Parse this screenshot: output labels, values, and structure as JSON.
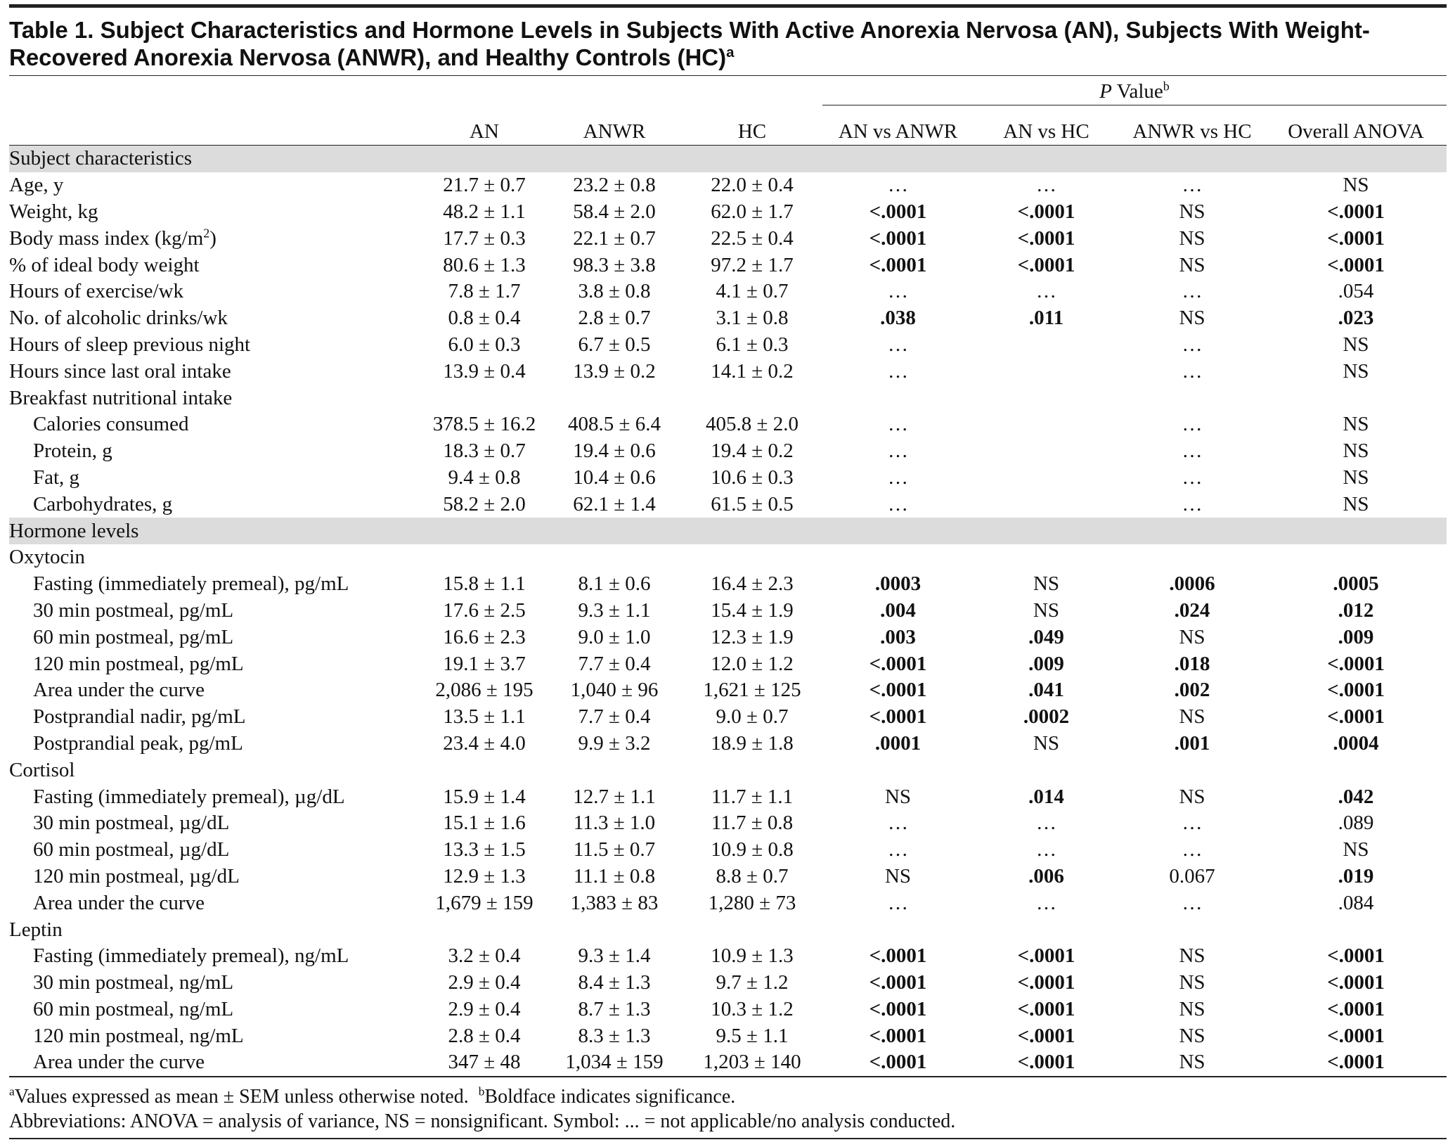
{
  "title": {
    "text": "Table 1. Subject Characteristics and Hormone Levels in Subjects With Active Anorexia Nervosa (AN), Subjects With Weight-Recovered Anorexia Nervosa (ANWR), and Healthy Controls (HC)",
    "sup": "a"
  },
  "p_header": {
    "italic": "P",
    "text": " Value",
    "sup": "b"
  },
  "columns": [
    "AN",
    "ANWR",
    "HC",
    "AN vs ANWR",
    "AN vs HC",
    "ANWR vs HC",
    "Overall ANOVA"
  ],
  "rows": [
    {
      "style": "section",
      "label": "Subject characteristics"
    },
    {
      "style": "item",
      "label": "Age, y",
      "cells": [
        "21.7 ± 0.7",
        "23.2 ± 0.8",
        "22.0 ± 0.4",
        "…",
        "…",
        "…",
        "NS"
      ],
      "bold": [
        false,
        false,
        false,
        false
      ]
    },
    {
      "style": "item",
      "label": "Weight, kg",
      "cells": [
        "48.2 ± 1.1",
        "58.4 ± 2.0",
        "62.0 ± 1.7",
        "<.0001",
        "<.0001",
        "NS",
        "<.0001"
      ],
      "bold": [
        true,
        true,
        false,
        true
      ]
    },
    {
      "style": "item",
      "label": "Body mass index (kg/m",
      "label_sup": "2",
      "label_end": ")",
      "cells": [
        "17.7 ± 0.3",
        "22.1 ± 0.7",
        "22.5 ± 0.4",
        "<.0001",
        "<.0001",
        "NS",
        "<.0001"
      ],
      "bold": [
        true,
        true,
        false,
        true
      ]
    },
    {
      "style": "item",
      "label": "% of ideal body weight",
      "cells": [
        "80.6 ± 1.3",
        "98.3 ± 3.8",
        "97.2 ± 1.7",
        "<.0001",
        "<.0001",
        "NS",
        "<.0001"
      ],
      "bold": [
        true,
        true,
        false,
        true
      ]
    },
    {
      "style": "item",
      "label": "Hours of exercise/wk",
      "cells": [
        "7.8 ± 1.7",
        "3.8 ± 0.8",
        "4.1 ± 0.7",
        "…",
        "…",
        "…",
        ".054"
      ],
      "bold": [
        false,
        false,
        false,
        false
      ]
    },
    {
      "style": "item",
      "label": "No. of alcoholic drinks/wk",
      "cells": [
        "0.8 ± 0.4",
        "2.8 ± 0.7",
        "3.1 ± 0.8",
        ".038",
        ".011",
        "NS",
        ".023"
      ],
      "bold": [
        true,
        true,
        false,
        true
      ]
    },
    {
      "style": "item",
      "label": "Hours of sleep previous night",
      "cells": [
        "6.0 ± 0.3",
        "6.7 ± 0.5",
        "6.1 ± 0.3",
        "…",
        null,
        "…",
        "NS"
      ],
      "bold": [
        false,
        false,
        false,
        false
      ]
    },
    {
      "style": "item",
      "label": "Hours since last oral intake",
      "cells": [
        "13.9 ± 0.4",
        "13.9 ± 0.2",
        "14.1 ± 0.2",
        "…",
        null,
        "…",
        "NS"
      ],
      "bold": [
        false,
        false,
        false,
        false
      ]
    },
    {
      "style": "group",
      "label": "Breakfast nutritional intake"
    },
    {
      "style": "sub",
      "label": "Calories consumed",
      "cells": [
        "378.5 ± 16.2",
        "408.5 ± 6.4",
        "405.8 ± 2.0",
        "…",
        null,
        "…",
        "NS"
      ],
      "bold": [
        false,
        false,
        false,
        false
      ]
    },
    {
      "style": "sub",
      "label": "Protein, g",
      "cells": [
        "18.3 ± 0.7",
        "19.4 ± 0.6",
        "19.4 ± 0.2",
        "…",
        null,
        "…",
        "NS"
      ],
      "bold": [
        false,
        false,
        false,
        false
      ]
    },
    {
      "style": "sub",
      "label": "Fat, g",
      "cells": [
        "9.4 ± 0.8",
        "10.4 ± 0.6",
        "10.6 ± 0.3",
        "…",
        null,
        "…",
        "NS"
      ],
      "bold": [
        false,
        false,
        false,
        false
      ]
    },
    {
      "style": "sub",
      "label": "Carbohydrates, g",
      "cells": [
        "58.2 ± 2.0",
        "62.1 ± 1.4",
        "61.5 ± 0.5",
        "…",
        null,
        "…",
        "NS"
      ],
      "bold": [
        false,
        false,
        false,
        false
      ]
    },
    {
      "style": "section",
      "label": "Hormone levels"
    },
    {
      "style": "group",
      "label": "Oxytocin"
    },
    {
      "style": "sub",
      "label": "Fasting (immediately premeal), pg/mL",
      "cells": [
        "15.8 ± 1.1",
        "8.1 ± 0.6",
        "16.4 ± 2.3",
        ".0003",
        "NS",
        ".0006",
        ".0005"
      ],
      "bold": [
        true,
        false,
        true,
        true
      ]
    },
    {
      "style": "sub",
      "label": "30 min postmeal, pg/mL",
      "cells": [
        "17.6 ± 2.5",
        "9.3 ± 1.1",
        "15.4 ± 1.9",
        ".004",
        "NS",
        ".024",
        ".012"
      ],
      "bold": [
        true,
        false,
        true,
        true
      ]
    },
    {
      "style": "sub",
      "label": "60 min postmeal, pg/mL",
      "cells": [
        "16.6 ± 2.3",
        "9.0 ± 1.0",
        "12.3 ± 1.9",
        ".003",
        ".049",
        "NS",
        ".009"
      ],
      "bold": [
        true,
        true,
        false,
        true
      ]
    },
    {
      "style": "sub",
      "label": "120 min postmeal, pg/mL",
      "cells": [
        "19.1 ± 3.7",
        "7.7 ± 0.4",
        "12.0 ± 1.2",
        "<.0001",
        ".009",
        ".018",
        "<.0001"
      ],
      "bold": [
        true,
        true,
        true,
        true
      ]
    },
    {
      "style": "sub",
      "label": "Area under the curve",
      "cells": [
        "2,086 ± 195",
        "1,040 ± 96",
        "1,621 ± 125",
        "<.0001",
        ".041",
        ".002",
        "<.0001"
      ],
      "bold": [
        true,
        true,
        true,
        true
      ]
    },
    {
      "style": "sub",
      "label": "Postprandial nadir, pg/mL",
      "cells": [
        "13.5 ± 1.1",
        "7.7 ± 0.4",
        "9.0 ± 0.7",
        "<.0001",
        ".0002",
        "NS",
        "<.0001"
      ],
      "bold": [
        true,
        true,
        false,
        true
      ]
    },
    {
      "style": "sub",
      "label": "Postprandial peak, pg/mL",
      "cells": [
        "23.4 ± 4.0",
        "9.9 ± 3.2",
        "18.9 ± 1.8",
        ".0001",
        "NS",
        ".001",
        ".0004"
      ],
      "bold": [
        true,
        false,
        true,
        true
      ]
    },
    {
      "style": "group",
      "label": "Cortisol"
    },
    {
      "style": "sub",
      "label": "Fasting (immediately premeal), µg/dL",
      "cells": [
        "15.9 ± 1.4",
        "12.7 ± 1.1",
        "11.7 ± 1.1",
        "NS",
        ".014",
        "NS",
        ".042"
      ],
      "bold": [
        false,
        true,
        false,
        true
      ]
    },
    {
      "style": "sub",
      "label": "30 min postmeal, µg/dL",
      "cells": [
        "15.1 ± 1.6",
        "11.3 ± 1.0",
        "11.7 ± 0.8",
        "…",
        "…",
        "…",
        ".089"
      ],
      "bold": [
        false,
        false,
        false,
        false
      ]
    },
    {
      "style": "sub",
      "label": "60 min postmeal, µg/dL",
      "cells": [
        "13.3 ± 1.5",
        "11.5 ± 0.7",
        "10.9 ± 0.8",
        "…",
        "…",
        "…",
        "NS"
      ],
      "bold": [
        false,
        false,
        false,
        false
      ]
    },
    {
      "style": "sub",
      "label": "120 min postmeal, µg/dL",
      "cells": [
        "12.9 ± 1.3",
        "11.1 ± 0.8",
        "8.8 ± 0.7",
        "NS",
        ".006",
        "0.067",
        ".019"
      ],
      "bold": [
        false,
        true,
        false,
        true
      ]
    },
    {
      "style": "sub",
      "label": "Area under the curve",
      "cells": [
        "1,679 ± 159",
        "1,383 ± 83",
        "1,280 ± 73",
        "…",
        "…",
        "…",
        ".084"
      ],
      "bold": [
        false,
        false,
        false,
        false
      ]
    },
    {
      "style": "group",
      "label": "Leptin"
    },
    {
      "style": "sub",
      "label": "Fasting (immediately premeal), ng/mL",
      "cells": [
        "3.2 ± 0.4",
        "9.3 ± 1.4",
        "10.9 ± 1.3",
        "<.0001",
        "<.0001",
        "NS",
        "<.0001"
      ],
      "bold": [
        true,
        true,
        false,
        true
      ]
    },
    {
      "style": "sub",
      "label": "30 min postmeal, ng/mL",
      "cells": [
        "2.9 ± 0.4",
        "8.4 ± 1.3",
        "9.7 ± 1.2",
        "<.0001",
        "<.0001",
        "NS",
        "<.0001"
      ],
      "bold": [
        true,
        true,
        false,
        true
      ]
    },
    {
      "style": "sub",
      "label": "60 min postmeal, ng/mL",
      "cells": [
        "2.9 ± 0.4",
        "8.7 ± 1.3",
        "10.3 ± 1.2",
        "<.0001",
        "<.0001",
        "NS",
        "<.0001"
      ],
      "bold": [
        true,
        true,
        false,
        true
      ]
    },
    {
      "style": "sub",
      "label": "120 min postmeal, ng/mL",
      "cells": [
        "2.8 ± 0.4",
        "8.3 ± 1.3",
        "9.5 ± 1.1",
        "<.0001",
        "<.0001",
        "NS",
        "<.0001"
      ],
      "bold": [
        true,
        true,
        false,
        true
      ]
    },
    {
      "style": "sub",
      "label": "Area under the curve",
      "cells": [
        "347 ± 48",
        "1,034 ± 159",
        "1,203 ± 140",
        "<.0001",
        "<.0001",
        "NS",
        "<.0001"
      ],
      "bold": [
        true,
        true,
        false,
        true
      ]
    }
  ],
  "notes": [
    {
      "sup": "a",
      "text": "Values expressed as mean ± SEM unless otherwise noted."
    },
    {
      "sup": "b",
      "text": "Boldface indicates significance."
    }
  ],
  "abbreviations": "Abbreviations: ANOVA = analysis of variance, NS = nonsignificant.  Symbol: ... = not applicable/no analysis conducted."
}
